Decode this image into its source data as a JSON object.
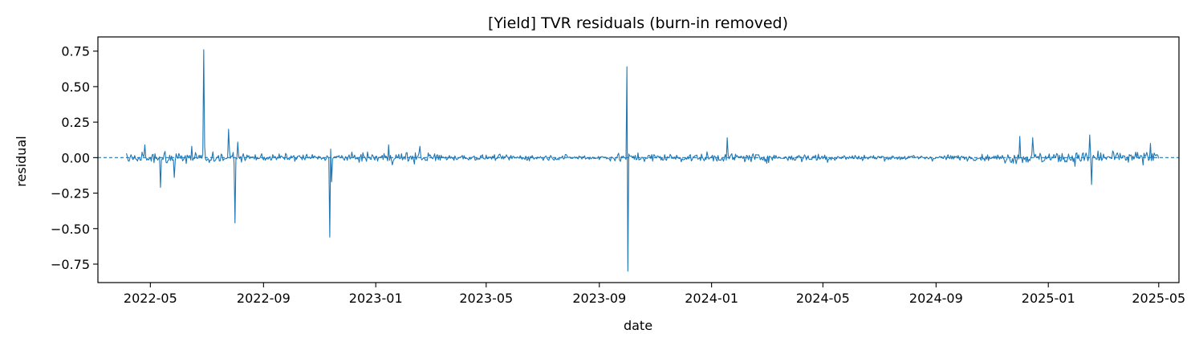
{
  "chart_data": {
    "type": "line",
    "title": "[Yield] TVR residuals (burn-in removed)",
    "xlabel": "date",
    "ylabel": "residual",
    "x_range": [
      "2022-03-05",
      "2025-05-23"
    ],
    "ylim": [
      -0.88,
      0.85
    ],
    "x_ticks": [
      "2022-05-01",
      "2022-09-01",
      "2023-01-01",
      "2023-05-01",
      "2023-09-01",
      "2024-01-01",
      "2024-05-01",
      "2024-09-01",
      "2025-01-01",
      "2025-05-01"
    ],
    "x_tick_labels": [
      "2022-05",
      "2022-09",
      "2023-01",
      "2023-05",
      "2023-09",
      "2024-01",
      "2024-05",
      "2024-09",
      "2025-01",
      "2025-05"
    ],
    "y_ticks": [
      0.75,
      0.5,
      0.25,
      0.0,
      -0.25,
      -0.5,
      -0.75
    ],
    "y_tick_labels": [
      "0.75",
      "0.50",
      "0.25",
      "0.00",
      "−0.25",
      "−0.50",
      "−0.75"
    ],
    "reference_line": {
      "y": 0.0,
      "style": "dashed"
    },
    "grid": false,
    "colors": {
      "series": "#1f77b4",
      "axes": "#000000"
    },
    "series": [
      {
        "x_start": "2022-04-05",
        "x_end": "2025-05-01",
        "noise_profile": [
          {
            "from": "2022-04-05",
            "to": "2022-08-01",
            "amplitude": 0.04
          },
          {
            "from": "2022-08-01",
            "to": "2022-12-15",
            "amplitude": 0.025
          },
          {
            "from": "2022-12-15",
            "to": "2023-03-15",
            "amplitude": 0.04
          },
          {
            "from": "2023-03-15",
            "to": "2023-09-15",
            "amplitude": 0.02
          },
          {
            "from": "2023-09-15",
            "to": "2024-05-15",
            "amplitude": 0.03
          },
          {
            "from": "2024-05-15",
            "to": "2024-11-15",
            "amplitude": 0.02
          },
          {
            "from": "2024-11-15",
            "to": "2025-05-01",
            "amplitude": 0.045
          }
        ],
        "spikes": [
          {
            "x": "2022-04-25",
            "y": 0.09
          },
          {
            "x": "2022-05-12",
            "y": -0.21
          },
          {
            "x": "2022-05-27",
            "y": -0.14
          },
          {
            "x": "2022-06-15",
            "y": 0.08
          },
          {
            "x": "2022-06-28",
            "y": 0.76
          },
          {
            "x": "2022-06-29",
            "y": 0.08
          },
          {
            "x": "2022-07-25",
            "y": 0.2
          },
          {
            "x": "2022-08-01",
            "y": -0.46
          },
          {
            "x": "2022-08-04",
            "y": 0.11
          },
          {
            "x": "2022-11-12",
            "y": -0.56
          },
          {
            "x": "2022-11-13",
            "y": 0.06
          },
          {
            "x": "2022-11-14",
            "y": -0.17
          },
          {
            "x": "2023-01-15",
            "y": 0.09
          },
          {
            "x": "2023-02-18",
            "y": 0.08
          },
          {
            "x": "2023-10-01",
            "y": 0.64
          },
          {
            "x": "2023-10-02",
            "y": -0.8
          },
          {
            "x": "2024-01-18",
            "y": 0.14
          },
          {
            "x": "2024-12-01",
            "y": 0.15
          },
          {
            "x": "2024-12-15",
            "y": 0.14
          },
          {
            "x": "2025-02-15",
            "y": 0.16
          },
          {
            "x": "2025-02-17",
            "y": -0.19
          },
          {
            "x": "2025-04-22",
            "y": 0.1
          }
        ]
      }
    ]
  }
}
